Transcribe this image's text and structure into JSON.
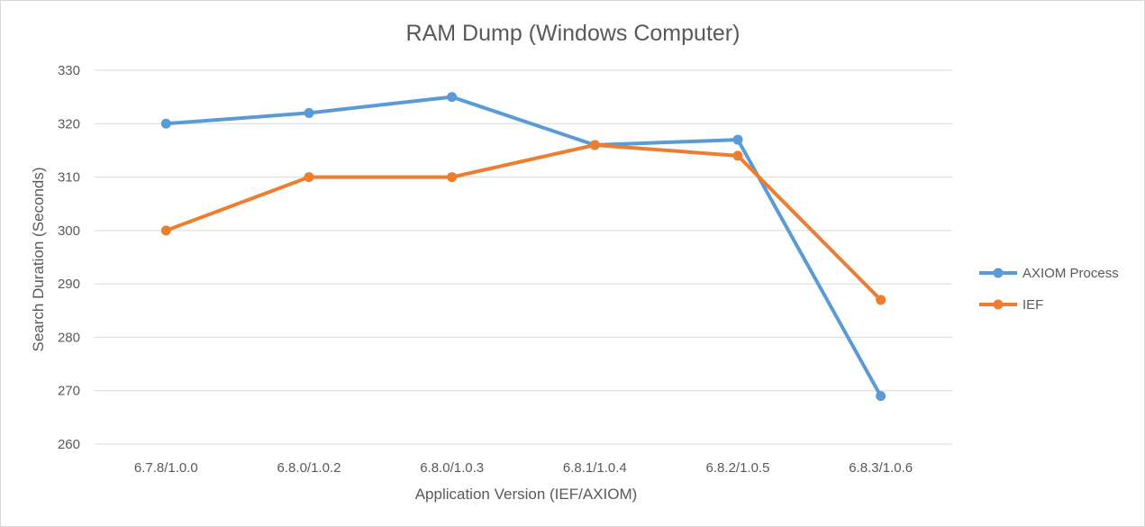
{
  "chart_data": {
    "type": "line",
    "title": "RAM Dump (Windows Computer)",
    "xlabel": "Application Version (IEF/AXIOM)",
    "ylabel": "Search Duration (Seconds)",
    "categories": [
      "6.7.8/1.0.0",
      "6.8.0/1.0.2",
      "6.8.0/1.0.3",
      "6.8.1/1.0.4",
      "6.8.2/1.0.5",
      "6.8.3/1.0.6"
    ],
    "ylim": [
      260,
      330
    ],
    "yticks": [
      260,
      270,
      280,
      290,
      300,
      310,
      320,
      330
    ],
    "grid": true,
    "legend_position": "right",
    "series": [
      {
        "name": "AXIOM Process",
        "color": "#5b9bd5",
        "values": [
          320,
          322,
          325,
          316,
          317,
          269
        ]
      },
      {
        "name": "IEF",
        "color": "#ed7d31",
        "values": [
          300,
          310,
          310,
          316,
          314,
          287
        ]
      }
    ]
  }
}
